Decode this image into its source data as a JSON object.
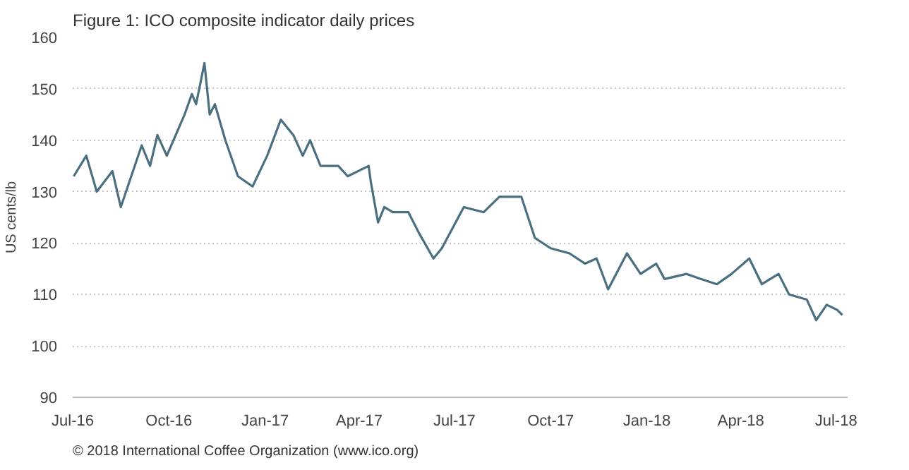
{
  "chart_data": {
    "type": "line",
    "title": "Figure 1: ICO composite indicator daily prices",
    "ylabel": "US cents/lb",
    "annotations": [
      "© 2018 International Coffee Organization (www.ico.org)"
    ],
    "x": [
      "2016-07-02",
      "2016-07-14",
      "2016-07-24",
      "2016-08-08",
      "2016-08-16",
      "2016-09-05",
      "2016-09-13",
      "2016-09-20",
      "2016-09-29",
      "2016-10-16",
      "2016-10-23",
      "2016-10-27",
      "2016-11-04",
      "2016-11-09",
      "2016-11-14",
      "2016-11-24",
      "2016-12-06",
      "2016-12-20",
      "2017-01-03",
      "2017-01-16",
      "2017-01-28",
      "2017-02-06",
      "2017-02-13",
      "2017-02-23",
      "2017-03-12",
      "2017-03-21",
      "2017-04-10",
      "2017-04-12",
      "2017-04-19",
      "2017-04-25",
      "2017-05-03",
      "2017-05-18",
      "2017-05-28",
      "2017-06-11",
      "2017-06-19",
      "2017-07-10",
      "2017-07-29",
      "2017-08-13",
      "2017-09-03",
      "2017-09-16",
      "2017-10-01",
      "2017-10-19",
      "2017-11-03",
      "2017-11-14",
      "2017-11-25",
      "2017-12-13",
      "2017-12-26",
      "2018-01-10",
      "2018-01-18",
      "2018-02-08",
      "2018-02-22",
      "2018-03-09",
      "2018-03-23",
      "2018-04-09",
      "2018-04-21",
      "2018-05-07",
      "2018-05-17",
      "2018-06-03",
      "2018-06-12",
      "2018-06-22",
      "2018-07-02",
      "2018-07-07"
    ],
    "series": [
      {
        "color": "#4a6f80",
        "values": [
          133,
          137,
          130,
          134,
          127,
          139,
          135,
          141,
          137,
          145,
          149,
          147,
          155,
          145,
          147,
          140,
          133,
          131,
          137,
          144,
          141,
          137,
          140,
          135,
          135,
          133,
          135,
          132,
          124,
          127,
          126,
          126,
          122,
          117,
          119,
          127,
          126,
          129,
          129,
          121,
          119,
          118,
          116,
          117,
          111,
          118,
          114,
          116,
          113,
          114,
          113,
          112,
          114,
          117,
          112,
          114,
          110,
          109,
          105,
          108,
          107,
          106
        ]
      }
    ],
    "xlim": [
      "2016-07-01",
      "2018-07-12"
    ],
    "xticks": [
      {
        "value": "2016-07-01",
        "label": "Jul-16"
      },
      {
        "value": "2016-10-01",
        "label": "Oct-16"
      },
      {
        "value": "2017-01-01",
        "label": "Jan-17"
      },
      {
        "value": "2017-04-01",
        "label": "Apr-17"
      },
      {
        "value": "2017-07-01",
        "label": "Jul-17"
      },
      {
        "value": "2017-10-01",
        "label": "Oct-17"
      },
      {
        "value": "2018-01-01",
        "label": "Jan-18"
      },
      {
        "value": "2018-04-01",
        "label": "Apr-18"
      },
      {
        "value": "2018-07-01",
        "label": "Jul-18"
      }
    ],
    "ylim": [
      90,
      160
    ],
    "yticks": [
      90,
      100,
      110,
      120,
      130,
      140,
      150,
      160
    ],
    "grid": "y",
    "marker": "none",
    "line_style": "solid"
  }
}
